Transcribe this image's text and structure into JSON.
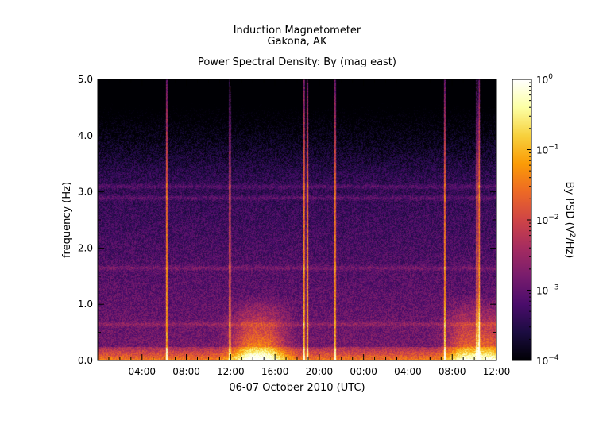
{
  "chart_data": {
    "type": "heatmap",
    "title": "Induction Magnetometer",
    "subtitle": "Gakona, AK",
    "plot_title": "Power Spectral Density: By (mag east)",
    "xlabel": "06-07 October 2010 (UTC)",
    "ylabel": "frequency (Hz)",
    "x_ticks": [
      "04:00",
      "08:00",
      "12:00",
      "16:00",
      "20:00",
      "00:00",
      "04:00",
      "08:00",
      "12:00"
    ],
    "x_range_hours": [
      0,
      36
    ],
    "y_ticks": [
      "0.0",
      "1.0",
      "2.0",
      "3.0",
      "4.0",
      "5.0"
    ],
    "ylim": [
      0,
      5
    ],
    "colorbar": {
      "label": "By PSD (V²/Hz)",
      "label_pre": "By PSD (V",
      "label_sup": "2",
      "label_post": "/Hz)",
      "scale": "log",
      "range": [
        0.0001,
        1
      ],
      "ticks": [
        {
          "base": "10",
          "exp": "0"
        },
        {
          "base": "10",
          "exp": "−1"
        },
        {
          "base": "10",
          "exp": "−2"
        },
        {
          "base": "10",
          "exp": "−3"
        },
        {
          "base": "10",
          "exp": "−4"
        }
      ]
    },
    "colormap": [
      "#000004",
      "#1b0c41",
      "#4a0c6b",
      "#781c6d",
      "#a52c60",
      "#cf4446",
      "#ed6925",
      "#fb9b06",
      "#f7d13d",
      "#fcffa4",
      "#ffffff"
    ],
    "features": {
      "vertical_bursts_hours": [
        6.2,
        11.9,
        18.6,
        18.9,
        21.4,
        31.3,
        34.2,
        34.4
      ],
      "horizontal_bands_hz": [
        0.65,
        1.65,
        2.9,
        3.1
      ],
      "low_freq_enhancements_hours": [
        13.5,
        15.5,
        33.0,
        35.5
      ]
    }
  }
}
